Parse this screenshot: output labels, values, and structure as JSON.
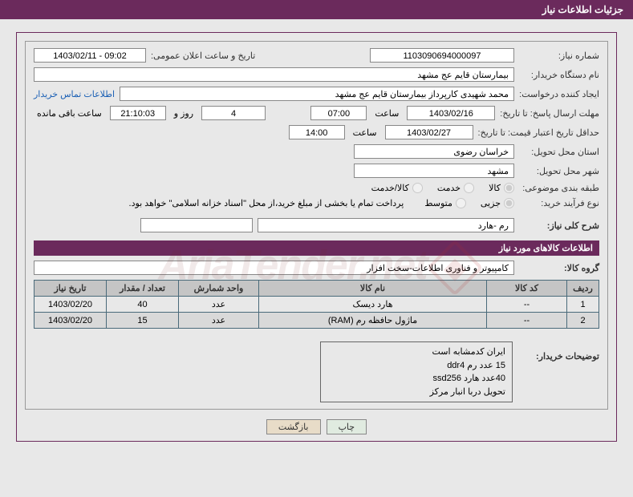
{
  "header": {
    "title": "جزئیات اطلاعات نیاز"
  },
  "form": {
    "need_no_label": "شماره نیاز:",
    "need_no": "1103090694000097",
    "ann_date_label": "تاریخ و ساعت اعلان عمومی:",
    "ann_date": "1403/02/11 - 09:02",
    "buyer_org_label": "نام دستگاه خریدار:",
    "buyer_org": "بیمارستان قایم  عج  مشهد",
    "requester_label": "ایجاد کننده درخواست:",
    "requester": "محمد شهیدی کارپرداز بیمارستان قایم  عج  مشهد",
    "contact_link": "اطلاعات تماس خریدار",
    "deadline_reply_label": "مهلت ارسال پاسخ: تا تاریخ:",
    "deadline_reply_date": "1403/02/16",
    "hour_label": "ساعت",
    "deadline_reply_time": "07:00",
    "days_remaining": "4",
    "days_and_label": "روز و",
    "time_remaining": "21:10:03",
    "remaining_label": "ساعت باقی مانده",
    "validity_label": "حداقل تاریخ اعتبار قیمت: تا تاریخ:",
    "validity_date": "1403/02/27",
    "validity_time": "14:00",
    "province_label": "استان محل تحویل:",
    "province": "خراسان رضوی",
    "city_label": "شهر محل تحویل:",
    "city": "مشهد",
    "category_label": "طبقه بندی موضوعی:",
    "cat_goods": "کالا",
    "cat_service": "خدمت",
    "cat_both": "کالا/خدمت",
    "proc_type_label": "نوع فرآیند خرید:",
    "proc_detail": "جزیی",
    "proc_medium": "متوسط",
    "proc_note": "پرداخت تمام یا بخشی از مبلغ خرید،از محل \"اسناد خزانه اسلامی\" خواهد بود.",
    "desc_label": "شرح کلی نیاز:",
    "desc": "رم -هارد",
    "group_label": "گروه کالا:",
    "group": "کامپیوتر و فناوری اطلاعات-سخت افزار"
  },
  "section_title": "اطلاعات کالاهای مورد نیاز",
  "table": {
    "headers": {
      "row": "ردیف",
      "code": "کد کالا",
      "name": "نام کالا",
      "unit": "واحد شمارش",
      "qty": "تعداد / مقدار",
      "need_date": "تاریخ نیاز"
    },
    "rows": [
      {
        "n": "1",
        "code": "--",
        "name": "هارد دیسک",
        "unit": "عدد",
        "qty": "40",
        "date": "1403/02/20"
      },
      {
        "n": "2",
        "code": "--",
        "name": "ماژول حافظه رم (RAM)",
        "unit": "عدد",
        "qty": "15",
        "date": "1403/02/20"
      }
    ]
  },
  "notes_label": "توضیحات خریدار:",
  "notes": [
    "ایران کدمشابه است",
    "15 عدد رم ddr4",
    "40عدد هارد ssd256",
    "تحویل دربا انبار مرکز"
  ],
  "buttons": {
    "print": "چاپ",
    "back": "بازگشت"
  },
  "watermark": "AriaTender.net"
}
